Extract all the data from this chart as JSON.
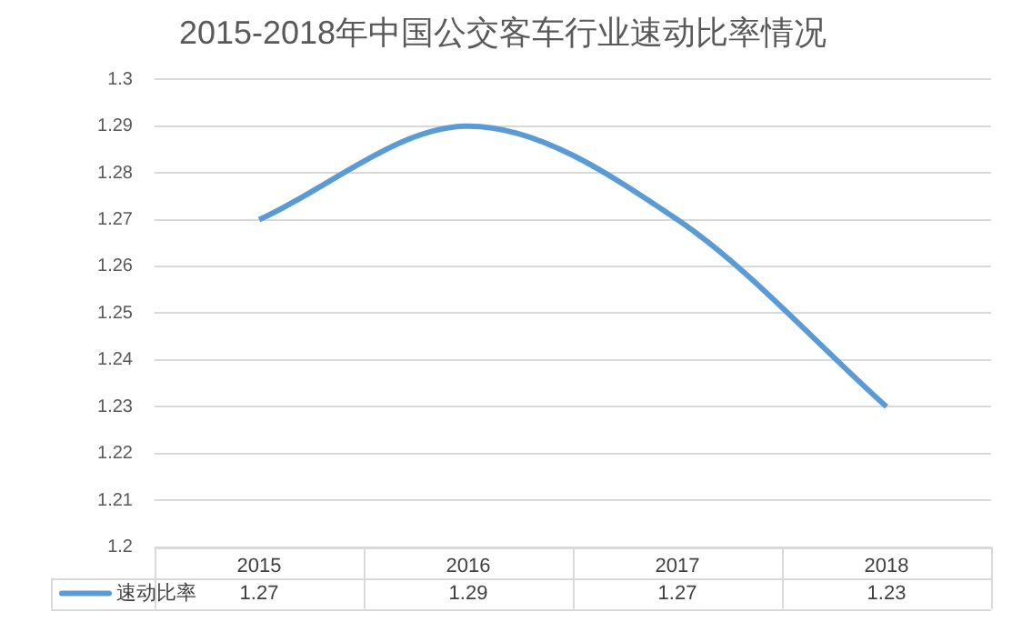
{
  "chart_data": {
    "type": "line",
    "title": "2015-2018年中国公交客车行业速动比率情况",
    "categories": [
      "2015",
      "2016",
      "2017",
      "2018"
    ],
    "series": [
      {
        "name": "速动比率",
        "color": "#5b9bd5",
        "values": [
          1.27,
          1.29,
          1.27,
          1.23
        ]
      }
    ],
    "ylim": [
      1.2,
      1.3
    ],
    "yticks": [
      1.2,
      1.21,
      1.22,
      1.23,
      1.24,
      1.25,
      1.26,
      1.27,
      1.28,
      1.29,
      1.3
    ],
    "grid": "y",
    "legend": "bottom",
    "data_labels": true,
    "marker": "none"
  }
}
